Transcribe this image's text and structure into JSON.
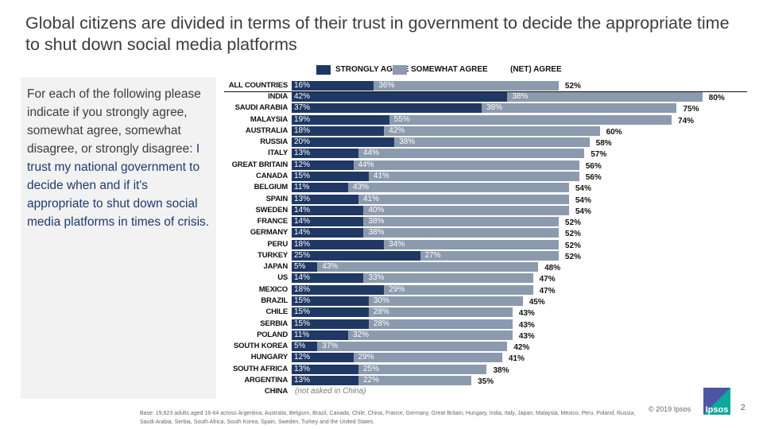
{
  "title": "Global citizens are divided in terms of their trust in government to decide the appropriate time to shut down social media platforms",
  "question": {
    "intro": "For each of the following please indicate if you strongly agree, somewhat agree, somewhat disagree, or strongly disagree:",
    "statement": "I trust my national government to decide when and if it's appropriate to shut down social media platforms in times of crisis."
  },
  "chart_data": {
    "type": "bar",
    "orientation": "horizontal-stacked",
    "legend": [
      "STRONGLY AGREE",
      "SOMEWHAT AGREE",
      "(NET) AGREE"
    ],
    "colors": {
      "strongly": "#1f3864",
      "somewhat": "#8c9aae"
    },
    "categories": [
      "ALL COUNTRIES",
      "INDIA",
      "SAUDI ARABIA",
      "MALAYSIA",
      "AUSTRALIA",
      "RUSSIA",
      "ITALY",
      "GREAT BRITAIN",
      "CANADA",
      "BELGIUM",
      "SPAIN",
      "SWEDEN",
      "FRANCE",
      "GERMANY",
      "PERU",
      "TURKEY",
      "JAPAN",
      "US",
      "MEXICO",
      "BRAZIL",
      "CHILE",
      "SERBIA",
      "POLAND",
      "SOUTH KOREA",
      "HUNGARY",
      "SOUTH AFRICA",
      "ARGENTINA",
      "CHINA"
    ],
    "series": [
      {
        "name": "STRONGLY AGREE",
        "values": [
          16,
          42,
          37,
          19,
          18,
          20,
          13,
          12,
          15,
          11,
          13,
          14,
          14,
          14,
          18,
          25,
          5,
          14,
          18,
          15,
          15,
          15,
          11,
          5,
          12,
          13,
          13,
          null
        ]
      },
      {
        "name": "SOMEWHAT AGREE",
        "values": [
          36,
          38,
          38,
          55,
          42,
          38,
          44,
          44,
          41,
          43,
          41,
          40,
          38,
          38,
          34,
          27,
          43,
          33,
          29,
          30,
          28,
          28,
          32,
          37,
          29,
          25,
          22,
          null
        ]
      },
      {
        "name": "(NET) AGREE",
        "values": [
          52,
          80,
          75,
          74,
          60,
          58,
          57,
          56,
          56,
          54,
          54,
          54,
          52,
          52,
          52,
          52,
          48,
          47,
          47,
          45,
          43,
          43,
          43,
          42,
          41,
          38,
          35,
          null
        ]
      }
    ],
    "notes": {
      "CHINA": "(not asked in China)"
    }
  },
  "footer": "Base: 19,823 adults aged 16-64 across Argentina, Australia, Belgium, Brazil, Canada, Chile, China, France, Germany, Great Britain, Hungary, India, Italy, Japan, Malaysia, Mexico, Peru, Poland, Russia, Saudi Arabia, Serbia, South Africa, South Korea, Spain, Sweden, Turkey and the United States.",
  "copyright": "© 2019 Ipsos",
  "logo": "Ipsos",
  "page_number": "2"
}
